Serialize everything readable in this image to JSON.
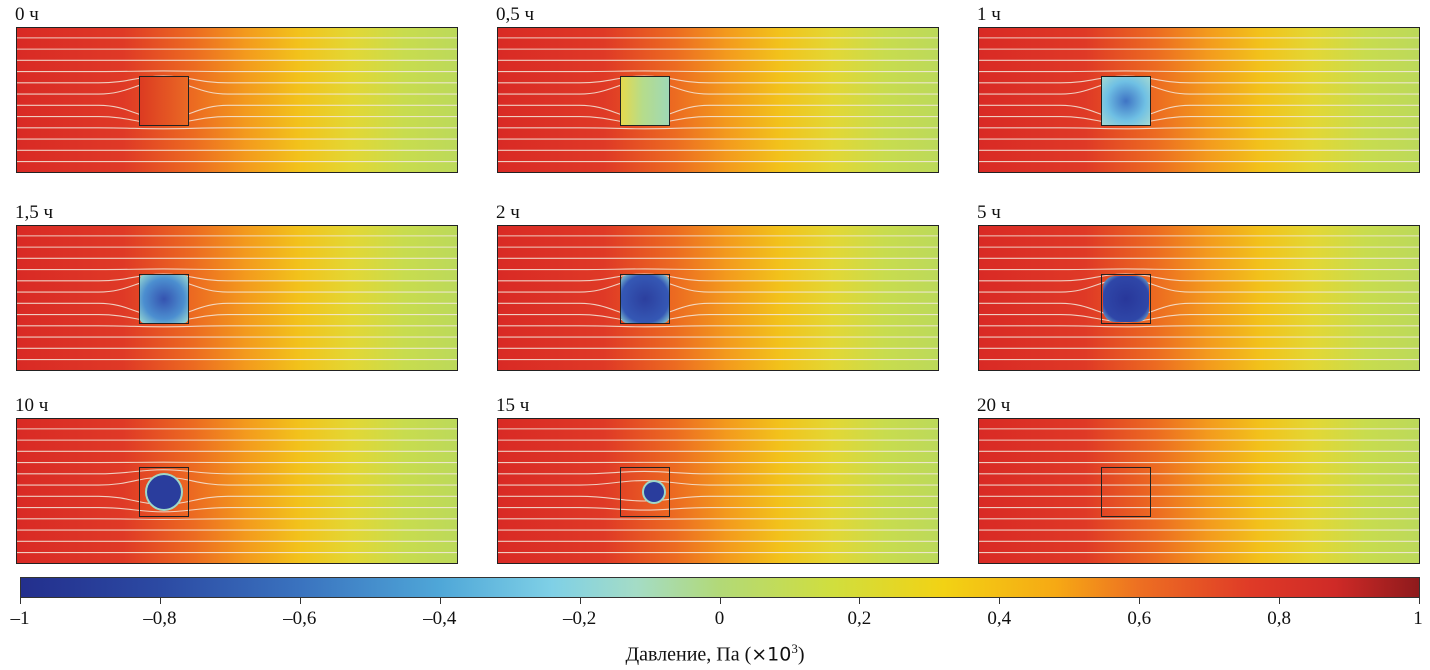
{
  "panels": [
    {
      "label": "0 ч",
      "stage": "full"
    },
    {
      "label": "0,5 ч",
      "stage": "early"
    },
    {
      "label": "1 ч",
      "stage": "early-blue"
    },
    {
      "label": "1,5 ч",
      "stage": "square-blue"
    },
    {
      "label": "2 ч",
      "stage": "square-dark"
    },
    {
      "label": "5 ч",
      "stage": "rounded-dark"
    },
    {
      "label": "10 ч",
      "stage": "circle"
    },
    {
      "label": "15 ч",
      "stage": "small-circle"
    },
    {
      "label": "20 ч",
      "stage": "dissolved"
    }
  ],
  "colorbar": {
    "title_prefix": "Давление, Па (",
    "title_multiplier": "×10",
    "title_exponent": "3",
    "title_suffix": ")",
    "min": -1,
    "max": 1,
    "ticks": [
      "–1",
      "–0,8",
      "–0,6",
      "–0,4",
      "–0,2",
      "0",
      "0,2",
      "0,4",
      "0,6",
      "0,8",
      "1"
    ],
    "colormap": [
      "#232f8d",
      "#3a73bf",
      "#7fd0e6",
      "#b2d977",
      "#f2d214",
      "#ed6f22",
      "#cf2a27",
      "#8e1a1c"
    ]
  },
  "colors": {
    "high_pressure": "#d92a25",
    "mid_pressure": "#f2c21b",
    "low_pressure": "#bcd95a",
    "streamline": "#f3e9dc",
    "obstacle_low": "#2b3f9c"
  }
}
